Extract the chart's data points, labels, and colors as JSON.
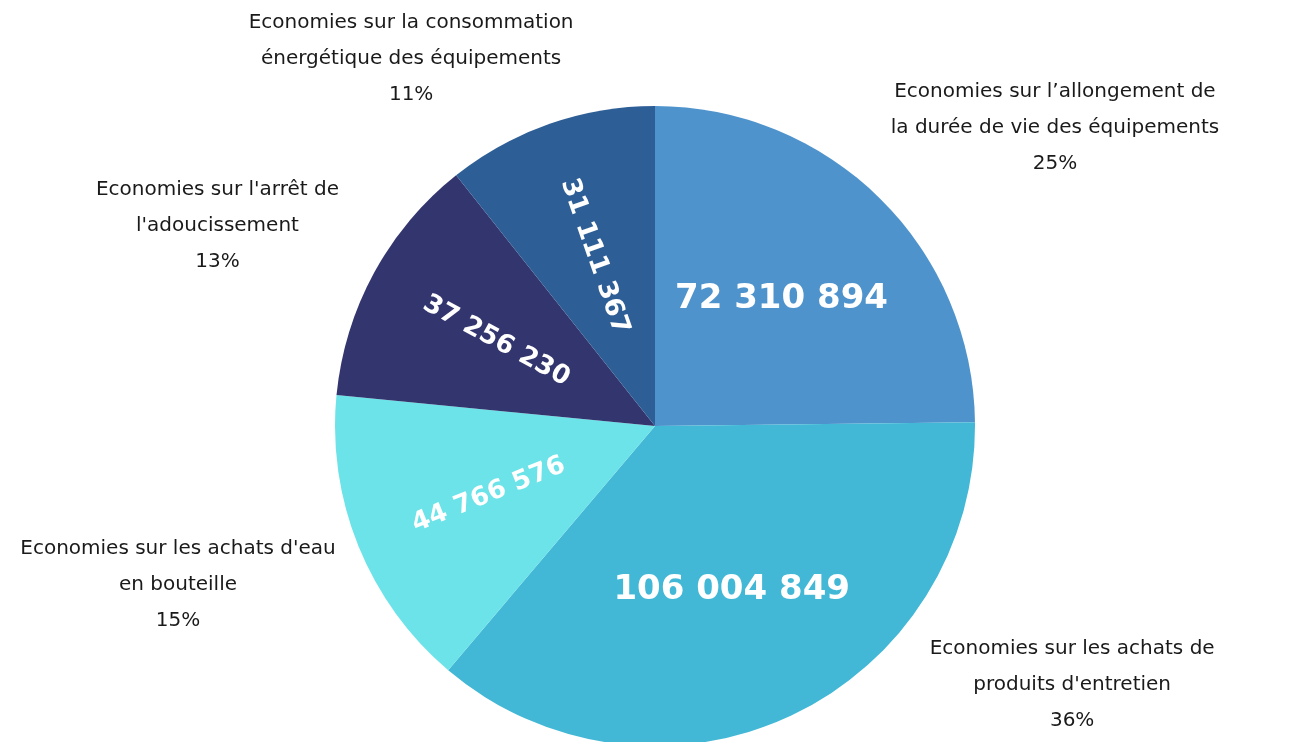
{
  "chart_data": {
    "type": "pie",
    "categories": [
      "Economies sur l’allongement de la durée de vie des équipements",
      "Economies sur les achats de produits d'entretien",
      "Economies sur les achats d'eau en bouteille",
      "Economies sur l'arrêt de l'adoucissement",
      "Economies sur la consommation énergétique des équipements"
    ],
    "values": [
      72310894,
      106004849,
      44766576,
      37256230,
      31111367
    ],
    "colors": [
      "#4f93cc",
      "#42b8d6",
      "#6be3e8",
      "#32356e",
      "#2e5e96"
    ],
    "data_labels": true,
    "annotations": [
      "25%",
      "36%",
      "15%",
      "13%",
      "11%"
    ]
  }
}
